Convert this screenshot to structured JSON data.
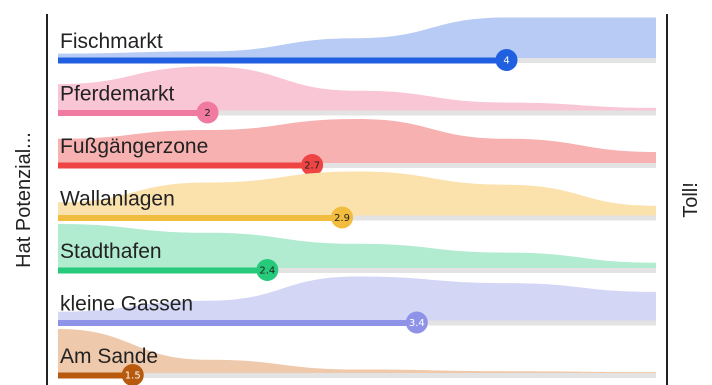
{
  "chart_data": {
    "type": "bar",
    "left_label": "Hat Potenzial...",
    "right_label": "Toll!",
    "xlim": [
      1,
      5
    ],
    "categories": [
      "Fischmarkt",
      "Pferdemarkt",
      "Fußgängerzone",
      "Wallanlagen",
      "Stadthafen",
      "kleine Gassen",
      "Am Sande"
    ],
    "values": [
      4,
      2,
      2.7,
      2.9,
      2.4,
      3.4,
      1.5
    ],
    "value_labels": [
      "4",
      "2",
      "2.7",
      "2.9",
      "2.4",
      "3.4",
      "1.5"
    ],
    "colors": {
      "bar": [
        "#1f5fe0",
        "#f07aa0",
        "#ee4444",
        "#f2bd3e",
        "#27c97a",
        "#8f93e8",
        "#b85a0d"
      ],
      "fill": [
        "#b7cbf5",
        "#f9c6d5",
        "#f7b1b1",
        "#fbe1ac",
        "#b1ecd0",
        "#d4d6f6",
        "#efc9ab"
      ],
      "dot": [
        "#1f5fe0",
        "#f07aa0",
        "#ee4444",
        "#f2bd3e",
        "#27c97a",
        "#8f93e8",
        "#b85a0d"
      ],
      "dot_text": [
        "#ffffff",
        "#222222",
        "#222222",
        "#222222",
        "#222222",
        "#ffffff",
        "#ffffff"
      ]
    },
    "distributions": [
      [
        0.1,
        0.15,
        0.45,
        0.92,
        0.92
      ],
      [
        0.6,
        1.0,
        0.45,
        0.18,
        0.06
      ],
      [
        0.55,
        0.75,
        1.0,
        0.55,
        0.25
      ],
      [
        0.3,
        0.75,
        1.0,
        0.7,
        0.22
      ],
      [
        1.0,
        0.8,
        0.55,
        0.35,
        0.12
      ],
      [
        0.2,
        0.45,
        1.0,
        0.85,
        0.65
      ],
      [
        1.0,
        0.3,
        0.08,
        0.04,
        0.02
      ]
    ]
  }
}
